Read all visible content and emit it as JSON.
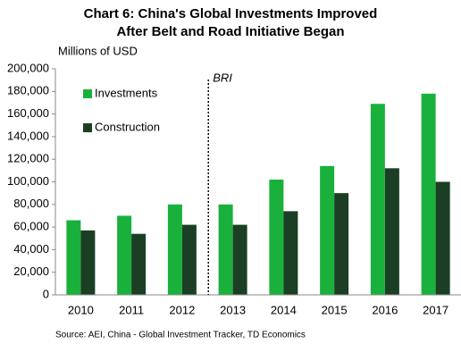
{
  "chart_data": {
    "type": "bar",
    "title": [
      "Chart 6: China's Global Investments Improved",
      "After Belt and Road Initiative Began"
    ],
    "y_label": "Millions of USD",
    "source": "Source:  AEI, China  - Global Investment Tracker, TD Economics",
    "categories": [
      "2010",
      "2011",
      "2012",
      "2013",
      "2014",
      "2015",
      "2016",
      "2017"
    ],
    "series": [
      {
        "name": "Investments",
        "color": "#19b13c",
        "values": [
          66000,
          70000,
          80000,
          80000,
          102000,
          114000,
          169000,
          178000
        ]
      },
      {
        "name": "Construction",
        "color": "#1b3f24",
        "values": [
          57000,
          54000,
          62000,
          62000,
          74000,
          90000,
          112000,
          100000
        ]
      }
    ],
    "annotations": [
      {
        "text": "BRI",
        "before": "2013"
      }
    ],
    "ylim": [
      0,
      200000
    ],
    "yticks": [
      0,
      {
        "value": 20000,
        "label": "20,000"
      },
      {
        "value": 40000,
        "label": "40,000"
      },
      {
        "value": 60000,
        "label": "60,000"
      },
      {
        "value": 80000,
        "label": "80,000"
      },
      {
        "value": 100000,
        "label": "100,000"
      },
      {
        "value": 120000,
        "label": "120,000"
      },
      {
        "value": 140000,
        "label": "140,000"
      },
      {
        "value": 160000,
        "label": "160,000"
      },
      {
        "value": 180000,
        "label": "180,000"
      },
      {
        "value": 200000,
        "label": "200,000"
      }
    ],
    "legend": "upper left",
    "grid": false
  }
}
